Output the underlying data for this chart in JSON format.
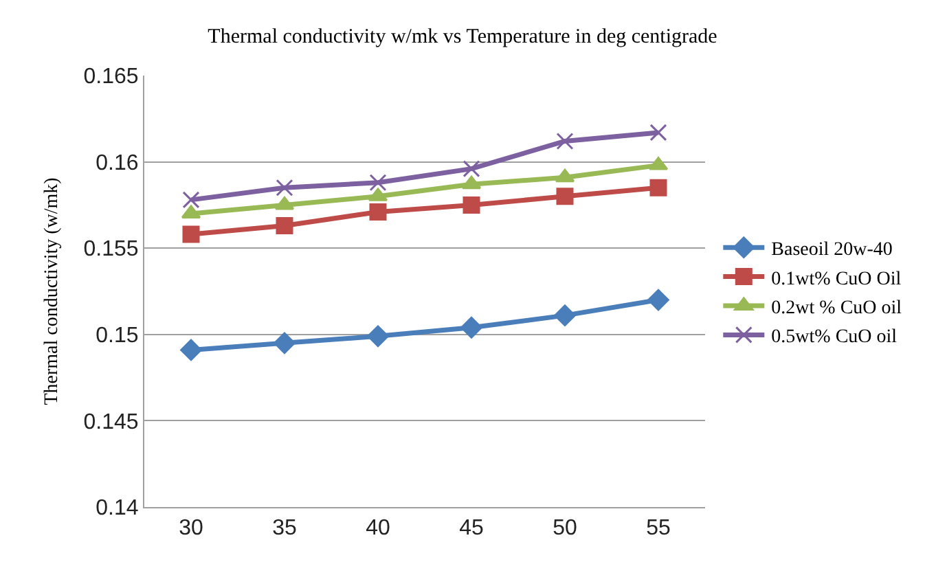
{
  "chart_data": {
    "type": "line",
    "title": "Thermal conductivity w/mk vs Temperature in deg centigrade",
    "ylabel": "Thermal conductivity (w/mk)",
    "categories": [
      "30",
      "35",
      "40",
      "45",
      "50",
      "55"
    ],
    "series": [
      {
        "name": "Baseoil 20w-40",
        "color": "#4a7ebb",
        "marker": "diamond",
        "values": [
          0.1491,
          0.1495,
          0.1499,
          0.1504,
          0.1511,
          0.152
        ]
      },
      {
        "name": "0.1wt% CuO Oil",
        "color": "#be4b48",
        "marker": "square",
        "values": [
          0.1558,
          0.1563,
          0.1571,
          0.1575,
          0.158,
          0.1585
        ]
      },
      {
        "name": "0.2wt % CuO oil",
        "color": "#98b954",
        "marker": "triangle",
        "values": [
          0.157,
          0.1575,
          0.158,
          0.1587,
          0.1591,
          0.1598
        ]
      },
      {
        "name": "0.5wt% CuO oil",
        "color": "#7d60a0",
        "marker": "cross",
        "values": [
          0.1578,
          0.1585,
          0.1588,
          0.1596,
          0.1612,
          0.1617
        ]
      }
    ],
    "ylim": [
      0.14,
      0.165
    ],
    "yticks": [
      0.14,
      0.145,
      0.15,
      0.155,
      0.16,
      0.165
    ],
    "grid": "y",
    "legend": "right"
  }
}
